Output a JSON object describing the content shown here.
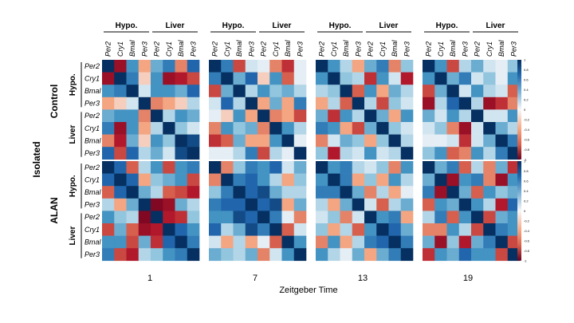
{
  "chart_data": {
    "type": "heatmap",
    "xlabel": "Zeitgeber Time",
    "time_points": [
      "1",
      "7",
      "13",
      "19"
    ],
    "conditions": [
      "Control",
      "ALAN"
    ],
    "outer_label": "Isolated",
    "tissues": [
      "Hypo.",
      "Liver"
    ],
    "genes": [
      "Per2",
      "Cry1",
      "Bmal",
      "Per3"
    ],
    "colorbar": {
      "range": [
        -1,
        1
      ],
      "ticks": [
        "1",
        "0.8",
        "0.6",
        "0.4",
        "0.2",
        "0",
        "-0.2",
        "-0.4",
        "-0.6",
        "-0.8",
        "-1"
      ],
      "low_color": "#67001f",
      "mid_color": "#f7f7f7",
      "high_color": "#053061"
    },
    "panels": [
      {
        "condition": "Control",
        "time": "1",
        "values": [
          [
            1.0,
            -0.8,
            0.6,
            -0.2,
            0.5,
            0.7,
            -0.3,
            0.8
          ],
          [
            -0.8,
            1.0,
            0.7,
            -0.1,
            0.6,
            -0.8,
            -0.7,
            -0.5
          ],
          [
            0.6,
            0.7,
            1.0,
            0.2,
            0.6,
            0.6,
            0.5,
            0.8
          ],
          [
            -0.2,
            -0.1,
            0.2,
            1.0,
            -0.3,
            -0.2,
            -0.1,
            0.3
          ],
          [
            0.5,
            0.6,
            0.6,
            -0.3,
            1.0,
            0.3,
            0.6,
            0.5
          ],
          [
            0.7,
            -0.8,
            0.6,
            -0.2,
            0.3,
            1.0,
            0.4,
            0.2
          ],
          [
            -0.3,
            -0.7,
            0.5,
            -0.1,
            0.6,
            0.4,
            1.0,
            0.9
          ],
          [
            0.8,
            -0.5,
            0.8,
            0.3,
            0.5,
            0.2,
            0.9,
            1.0
          ]
        ]
      },
      {
        "condition": "Control",
        "time": "7",
        "values": [
          [
            1.0,
            0.7,
            -0.5,
            0.2,
            0.1,
            -0.3,
            -0.6,
            0.1
          ],
          [
            0.7,
            1.0,
            0.5,
            0.8,
            -0.1,
            0.6,
            -0.4,
            0.1
          ],
          [
            -0.5,
            0.5,
            1.0,
            0.3,
            0.6,
            0.4,
            0.5,
            0.3
          ],
          [
            0.2,
            0.8,
            0.3,
            1.0,
            -0.2,
            0.5,
            -0.2,
            0.7
          ],
          [
            0.1,
            -0.1,
            0.6,
            -0.2,
            1.0,
            -0.3,
            -0.2,
            -0.5
          ],
          [
            -0.3,
            0.6,
            0.4,
            0.5,
            -0.3,
            1.0,
            0.6,
            0.3
          ],
          [
            -0.6,
            -0.4,
            0.5,
            -0.2,
            -0.2,
            0.6,
            1.0,
            0.1
          ],
          [
            0.1,
            0.1,
            0.3,
            0.7,
            -0.5,
            0.3,
            0.1,
            1.0
          ]
        ]
      },
      {
        "condition": "Control",
        "time": "13",
        "values": [
          [
            1.0,
            0.6,
            0.3,
            -0.2,
            0.5,
            0.7,
            -0.3,
            0.4
          ],
          [
            0.6,
            1.0,
            0.4,
            0.3,
            -0.6,
            0.6,
            0.2,
            -0.7
          ],
          [
            0.3,
            0.4,
            1.0,
            -0.4,
            0.6,
            -0.2,
            0.5,
            0.3
          ],
          [
            -0.2,
            0.3,
            -0.4,
            1.0,
            0.3,
            -0.5,
            0.4,
            0.2
          ],
          [
            0.5,
            -0.6,
            0.6,
            0.3,
            1.0,
            0.5,
            -0.2,
            0.6
          ],
          [
            0.7,
            0.6,
            -0.2,
            -0.5,
            0.5,
            1.0,
            0.4,
            0.2
          ],
          [
            -0.3,
            0.2,
            0.5,
            0.4,
            -0.2,
            0.4,
            1.0,
            0.3
          ],
          [
            0.4,
            -0.7,
            0.3,
            0.2,
            0.6,
            0.2,
            0.3,
            1.0
          ]
        ]
      },
      {
        "condition": "Control",
        "time": "19",
        "values": [
          [
            1.0,
            0.6,
            -0.5,
            0.3,
            0.5,
            0.2,
            0.1,
            0.4
          ],
          [
            0.6,
            1.0,
            0.5,
            0.7,
            0.2,
            0.4,
            0.1,
            0.6
          ],
          [
            -0.5,
            0.5,
            1.0,
            0.2,
            0.6,
            0.3,
            0.2,
            -0.4
          ],
          [
            -0.8,
            0.3,
            0.8,
            1.0,
            0.3,
            -0.8,
            -0.6,
            -0.3
          ],
          [
            0.5,
            0.2,
            0.6,
            0.3,
            1.0,
            0.2,
            0.2,
            0.6
          ],
          [
            0.2,
            0.4,
            -0.3,
            -0.8,
            0.2,
            1.0,
            0.5,
            0.3
          ],
          [
            0.1,
            0.1,
            0.2,
            -0.6,
            0.2,
            0.5,
            1.0,
            0.7
          ],
          [
            0.4,
            0.6,
            -0.4,
            -0.3,
            0.6,
            0.3,
            0.7,
            1.0
          ]
        ]
      },
      {
        "condition": "ALAN",
        "time": "1",
        "values": [
          [
            1.0,
            0.8,
            -0.4,
            0.3,
            0.6,
            -0.5,
            0.6,
            0.7
          ],
          [
            0.8,
            1.0,
            0.8,
            -0.2,
            0.4,
            0.5,
            0.6,
            -0.5
          ],
          [
            -0.4,
            0.8,
            1.0,
            0.5,
            0.3,
            -0.4,
            -0.5,
            -0.7
          ],
          [
            0.3,
            -0.2,
            0.5,
            1.0,
            -0.9,
            -0.8,
            0.5,
            0.3
          ],
          [
            0.6,
            0.4,
            0.3,
            -0.9,
            1.0,
            -0.7,
            -0.6,
            0.4
          ],
          [
            -0.5,
            0.5,
            -0.4,
            -0.8,
            -0.7,
            1.0,
            0.8,
            0.6
          ],
          [
            0.6,
            0.6,
            -0.5,
            0.5,
            -0.6,
            0.8,
            1.0,
            0.7
          ],
          [
            0.7,
            -0.5,
            -0.7,
            0.3,
            0.4,
            0.6,
            0.7,
            1.0
          ]
        ]
      },
      {
        "condition": "ALAN",
        "time": "7",
        "values": [
          [
            1.0,
            -0.3,
            0.4,
            0.7,
            0.6,
            0.8,
            0.2,
            0.5
          ],
          [
            -0.3,
            1.0,
            0.7,
            0.8,
            0.6,
            0.3,
            -0.2,
            0.4
          ],
          [
            0.4,
            0.7,
            1.0,
            0.8,
            0.9,
            0.5,
            0.3,
            0.3
          ],
          [
            0.7,
            0.8,
            0.8,
            1.0,
            0.8,
            0.9,
            -0.2,
            0.5
          ],
          [
            0.6,
            0.6,
            0.9,
            0.8,
            1.0,
            0.7,
            0.1,
            -0.3
          ],
          [
            0.8,
            0.3,
            0.5,
            0.9,
            0.7,
            1.0,
            -0.4,
            0.2
          ],
          [
            0.2,
            -0.2,
            0.3,
            -0.2,
            0.1,
            -0.4,
            1.0,
            0.6
          ],
          [
            0.5,
            0.4,
            0.3,
            0.5,
            -0.3,
            0.2,
            0.6,
            1.0
          ]
        ]
      },
      {
        "condition": "ALAN",
        "time": "13",
        "values": [
          [
            1.0,
            0.6,
            0.7,
            0.3,
            0.2,
            0.4,
            -0.3,
            0.6
          ],
          [
            0.6,
            1.0,
            0.7,
            -0.2,
            0.4,
            -0.2,
            0.6,
            0.3
          ],
          [
            0.7,
            0.7,
            1.0,
            0.5,
            -0.3,
            0.3,
            -0.2,
            0.1
          ],
          [
            0.3,
            -0.2,
            0.5,
            1.0,
            0.2,
            -0.4,
            0.3,
            0.5
          ],
          [
            0.2,
            0.4,
            -0.3,
            0.2,
            1.0,
            0.6,
            0.7,
            -0.2
          ],
          [
            0.4,
            -0.2,
            0.3,
            -0.4,
            0.6,
            1.0,
            0.8,
            0.5
          ],
          [
            -0.3,
            0.6,
            -0.2,
            0.3,
            0.7,
            0.8,
            1.0,
            0.7
          ],
          [
            0.6,
            0.3,
            0.1,
            0.5,
            -0.2,
            0.5,
            0.7,
            1.0
          ]
        ]
      },
      {
        "condition": "ALAN",
        "time": "19",
        "values": [
          [
            1.0,
            0.5,
            0.7,
            -0.4,
            0.3,
            -0.3,
            0.5,
            -0.6
          ],
          [
            0.5,
            1.0,
            -0.8,
            0.6,
            0.7,
            -0.3,
            -0.8,
            0.6
          ],
          [
            0.7,
            -0.8,
            1.0,
            0.5,
            -0.4,
            0.6,
            0.4,
            0.5
          ],
          [
            -0.4,
            0.6,
            0.5,
            1.0,
            0.6,
            0.3,
            -0.7,
            0.8
          ],
          [
            0.3,
            0.7,
            -0.4,
            0.6,
            1.0,
            -0.5,
            0.5,
            0.6
          ],
          [
            -0.3,
            -0.3,
            0.6,
            0.3,
            -0.5,
            1.0,
            0.7,
            0.6
          ],
          [
            0.5,
            -0.8,
            0.4,
            -0.7,
            0.5,
            0.7,
            1.0,
            -0.5
          ],
          [
            -0.6,
            0.6,
            0.5,
            0.8,
            0.6,
            0.6,
            -0.5,
            1.0
          ]
        ]
      }
    ]
  }
}
